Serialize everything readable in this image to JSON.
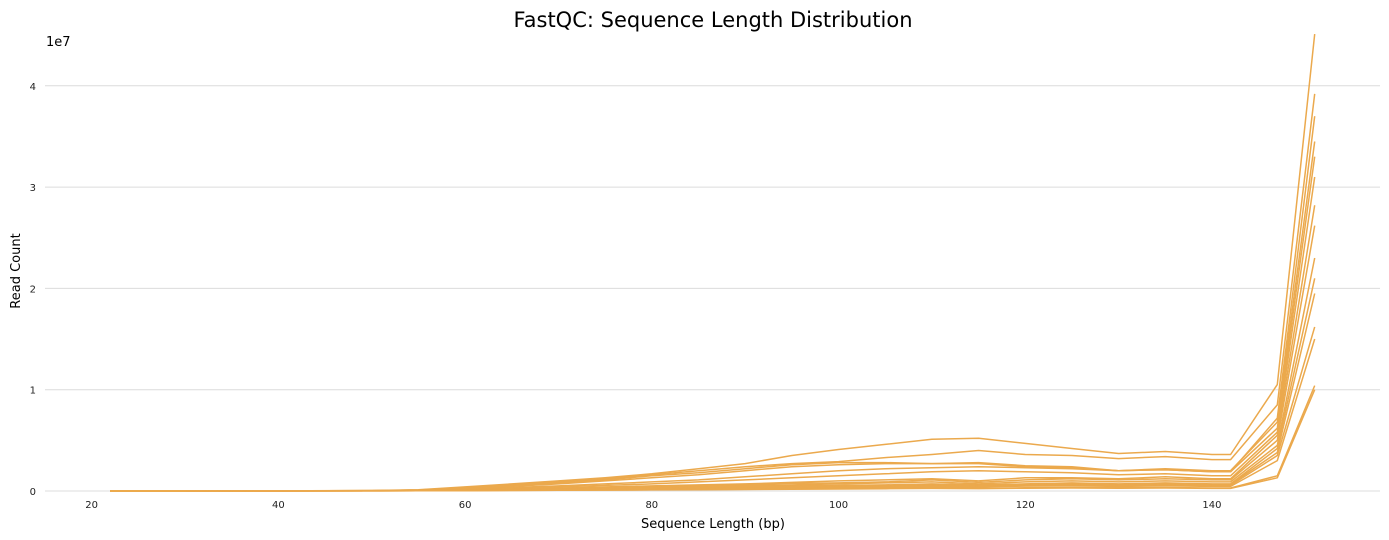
{
  "chart_data": {
    "type": "line",
    "title": "FastQC: Sequence Length Distribution",
    "xlabel": "Sequence Length (bp)",
    "ylabel": "Read Count",
    "y_offset_label": "1e7",
    "xlim": [
      15,
      158
    ],
    "ylim": [
      0,
      4.6
    ],
    "x_ticks": [
      20,
      40,
      60,
      80,
      100,
      120,
      140
    ],
    "y_ticks": [
      0,
      1,
      2,
      3,
      4
    ],
    "grid": "horizontal",
    "legend": "none",
    "line_color": "#eba94d",
    "x": [
      22,
      30,
      40,
      50,
      55,
      60,
      65,
      70,
      75,
      80,
      85,
      90,
      95,
      100,
      105,
      110,
      115,
      120,
      125,
      130,
      135,
      140,
      142,
      147,
      151
    ],
    "series": [
      {
        "values": [
          0,
          0,
          0.001,
          0.005,
          0.012,
          0.04,
          0.07,
          0.1,
          0.13,
          0.17,
          0.22,
          0.27,
          0.35,
          0.41,
          0.46,
          0.51,
          0.52,
          0.47,
          0.42,
          0.37,
          0.39,
          0.36,
          0.36,
          1.05,
          4.51
        ]
      },
      {
        "values": [
          0,
          0,
          0.001,
          0.004,
          0.01,
          0.035,
          0.06,
          0.09,
          0.12,
          0.16,
          0.2,
          0.24,
          0.27,
          0.29,
          0.33,
          0.36,
          0.4,
          0.36,
          0.35,
          0.32,
          0.34,
          0.31,
          0.31,
          0.85,
          3.92
        ]
      },
      {
        "values": [
          0,
          0,
          0.001,
          0.004,
          0.01,
          0.03,
          0.05,
          0.08,
          0.11,
          0.15,
          0.18,
          0.22,
          0.26,
          0.28,
          0.28,
          0.27,
          0.27,
          0.24,
          0.23,
          0.2,
          0.21,
          0.19,
          0.19,
          0.72,
          3.7
        ]
      },
      {
        "values": [
          0,
          0,
          0.001,
          0.003,
          0.008,
          0.025,
          0.045,
          0.07,
          0.1,
          0.13,
          0.16,
          0.2,
          0.24,
          0.26,
          0.27,
          0.27,
          0.28,
          0.25,
          0.24,
          0.2,
          0.22,
          0.2,
          0.2,
          0.68,
          3.45
        ]
      },
      {
        "values": [
          0,
          0,
          0.001,
          0.003,
          0.007,
          0.02,
          0.035,
          0.05,
          0.07,
          0.09,
          0.11,
          0.14,
          0.17,
          0.2,
          0.22,
          0.23,
          0.24,
          0.23,
          0.22,
          0.2,
          0.21,
          0.19,
          0.19,
          0.62,
          3.3
        ]
      },
      {
        "values": [
          0,
          0,
          0.001,
          0.002,
          0.006,
          0.015,
          0.025,
          0.04,
          0.055,
          0.07,
          0.09,
          0.11,
          0.13,
          0.15,
          0.17,
          0.19,
          0.2,
          0.19,
          0.18,
          0.16,
          0.17,
          0.15,
          0.15,
          0.58,
          3.1
        ]
      },
      {
        "values": [
          0,
          0,
          0.001,
          0.002,
          0.005,
          0.012,
          0.02,
          0.03,
          0.04,
          0.05,
          0.06,
          0.07,
          0.085,
          0.1,
          0.11,
          0.12,
          0.1,
          0.13,
          0.13,
          0.12,
          0.14,
          0.12,
          0.12,
          0.55,
          2.82
        ]
      },
      {
        "values": [
          0,
          0,
          0.001,
          0.002,
          0.005,
          0.01,
          0.018,
          0.025,
          0.035,
          0.045,
          0.055,
          0.065,
          0.075,
          0.08,
          0.09,
          0.11,
          0.085,
          0.11,
          0.12,
          0.11,
          0.12,
          0.11,
          0.11,
          0.5,
          2.62
        ]
      },
      {
        "values": [
          0,
          0,
          0.001,
          0.002,
          0.004,
          0.008,
          0.015,
          0.02,
          0.03,
          0.04,
          0.045,
          0.055,
          0.06,
          0.07,
          0.08,
          0.09,
          0.07,
          0.09,
          0.1,
          0.09,
          0.1,
          0.09,
          0.09,
          0.45,
          2.3
        ]
      },
      {
        "values": [
          0,
          0,
          0.001,
          0.002,
          0.004,
          0.008,
          0.013,
          0.018,
          0.025,
          0.032,
          0.04,
          0.045,
          0.05,
          0.055,
          0.06,
          0.07,
          0.06,
          0.07,
          0.08,
          0.07,
          0.08,
          0.07,
          0.07,
          0.42,
          2.1
        ]
      },
      {
        "values": [
          0,
          0,
          0.001,
          0.002,
          0.003,
          0.007,
          0.012,
          0.016,
          0.022,
          0.028,
          0.034,
          0.04,
          0.045,
          0.05,
          0.055,
          0.06,
          0.055,
          0.065,
          0.07,
          0.065,
          0.07,
          0.065,
          0.065,
          0.38,
          1.95
        ]
      },
      {
        "values": [
          0,
          0,
          0.001,
          0.002,
          0.003,
          0.006,
          0.01,
          0.014,
          0.018,
          0.022,
          0.026,
          0.03,
          0.035,
          0.04,
          0.045,
          0.05,
          0.045,
          0.055,
          0.06,
          0.055,
          0.06,
          0.055,
          0.055,
          0.35,
          1.62
        ]
      },
      {
        "values": [
          0,
          0,
          0.001,
          0.001,
          0.003,
          0.005,
          0.008,
          0.012,
          0.015,
          0.018,
          0.022,
          0.026,
          0.03,
          0.034,
          0.038,
          0.042,
          0.04,
          0.048,
          0.05,
          0.045,
          0.05,
          0.045,
          0.045,
          0.3,
          1.5
        ]
      },
      {
        "values": [
          0,
          0,
          0.001,
          0.001,
          0.002,
          0.004,
          0.006,
          0.008,
          0.01,
          0.012,
          0.015,
          0.018,
          0.021,
          0.024,
          0.027,
          0.03,
          0.028,
          0.032,
          0.035,
          0.032,
          0.035,
          0.03,
          0.03,
          0.15,
          1.04
        ]
      },
      {
        "values": [
          0,
          0,
          0.001,
          0.001,
          0.002,
          0.003,
          0.005,
          0.007,
          0.009,
          0.011,
          0.013,
          0.015,
          0.018,
          0.02,
          0.023,
          0.026,
          0.024,
          0.028,
          0.03,
          0.028,
          0.03,
          0.026,
          0.026,
          0.13,
          1.0
        ]
      }
    ]
  }
}
